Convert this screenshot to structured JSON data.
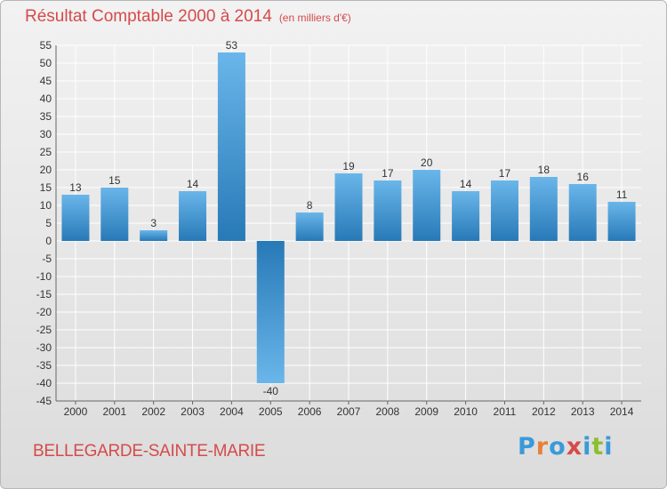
{
  "header": {
    "title": "Résultat Comptable 2000 à 2014",
    "subtitle": "(en milliers d'€)"
  },
  "footer": {
    "commune": "BELLEGARDE-SAINTE-MARIE"
  },
  "logo": {
    "text": "Proxiti",
    "letters": [
      "P",
      "r",
      "o",
      "x",
      "i",
      "t",
      "i"
    ],
    "colors": [
      "#3a9ad9",
      "#e8803a",
      "#3a9ad9",
      "#d64a4a",
      "#3a9ad9",
      "#8bbf2e",
      "#3a9ad9"
    ]
  },
  "colors": {
    "bar_light": "#6ab6ea",
    "bar_dark": "#2779b7",
    "grid": "#ffffff",
    "title": "#d64a4a"
  },
  "chart_data": {
    "type": "bar",
    "title": "Résultat Comptable 2000 à 2014",
    "subtitle": "(en milliers d'€)",
    "xlabel": "",
    "ylabel": "",
    "ylim": [
      -45,
      55
    ],
    "yticks": [
      55,
      50,
      45,
      40,
      35,
      30,
      25,
      20,
      15,
      10,
      5,
      0,
      -5,
      -10,
      -15,
      -20,
      -25,
      -30,
      -35,
      -40,
      -45
    ],
    "grid": true,
    "categories": [
      "2000",
      "2001",
      "2002",
      "2003",
      "2004",
      "2005",
      "2006",
      "2007",
      "2008",
      "2009",
      "2010",
      "2011",
      "2012",
      "2013",
      "2014"
    ],
    "values": [
      13,
      15,
      3,
      14,
      53,
      -40,
      8,
      19,
      17,
      20,
      14,
      17,
      18,
      16,
      11
    ]
  }
}
